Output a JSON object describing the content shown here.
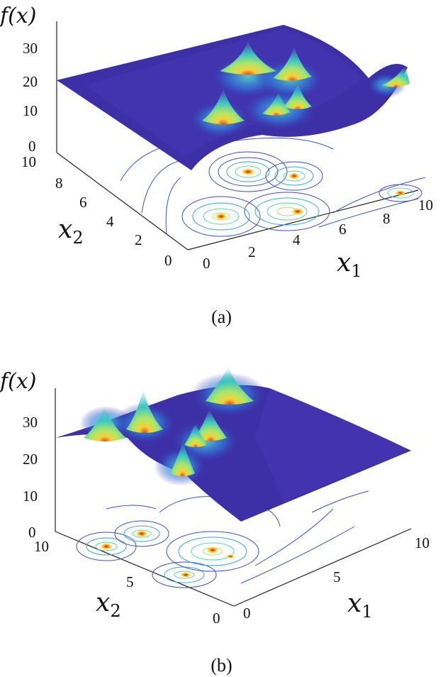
{
  "chart_data": [
    {
      "panel": "(a)",
      "type": "surface3d",
      "zlabel": "f(x)",
      "xlabel": "x1",
      "ylabel": "x2",
      "xticks": [
        "0",
        "2",
        "4",
        "6",
        "8",
        "10"
      ],
      "yticks": [
        "0",
        "2",
        "4",
        "6",
        "8",
        "10"
      ],
      "zticks": [
        "0",
        "10",
        "20",
        "30"
      ],
      "xlim": [
        0,
        10
      ],
      "ylim": [
        0,
        10
      ],
      "zlim": [
        0,
        35
      ],
      "peaks": [
        {
          "x1": 1.5,
          "x2": 3.0,
          "z": 28
        },
        {
          "x1": 3.0,
          "x2": 7.5,
          "z": 32
        },
        {
          "x1": 6.0,
          "x2": 6.0,
          "z": 31
        },
        {
          "x1": 5.0,
          "x2": 3.5,
          "z": 24
        },
        {
          "x1": 6.0,
          "x2": 4.0,
          "z": 27
        },
        {
          "x1": 10.0,
          "x2": 3.0,
          "z": 29
        }
      ],
      "colormap": [
        "#3a2a9e",
        "#2f7fe0",
        "#3cc6c2",
        "#a9e66a",
        "#f5d23a",
        "#e0481a"
      ]
    },
    {
      "panel": "(b)",
      "type": "surface3d",
      "zlabel": "f(x)",
      "xlabel": "x1",
      "ylabel": "x2",
      "xticks": [
        "0",
        "5",
        "10"
      ],
      "yticks": [
        "0",
        "5",
        "10"
      ],
      "zticks": [
        "0",
        "10",
        "20",
        "30"
      ],
      "xlim": [
        0,
        10
      ],
      "ylim": [
        0,
        10
      ],
      "zlim": [
        0,
        35
      ],
      "peaks": [
        {
          "x1": 1.0,
          "x2": 10.0,
          "z": 33
        },
        {
          "x1": 2.5,
          "x2": 9.0,
          "z": 35
        },
        {
          "x1": 4.0,
          "x2": 5.0,
          "z": 27
        },
        {
          "x1": 6.0,
          "x2": 5.0,
          "z": 31
        },
        {
          "x1": 7.0,
          "x2": 4.5,
          "z": 26
        },
        {
          "x1": 9.0,
          "x2": 10.0,
          "z": 34
        }
      ],
      "colormap": [
        "#3a2a9e",
        "#2f7fe0",
        "#3cc6c2",
        "#a9e66a",
        "#f5d23a",
        "#e0481a"
      ]
    }
  ],
  "captions": {
    "a": "(a)",
    "b": "(b)"
  }
}
